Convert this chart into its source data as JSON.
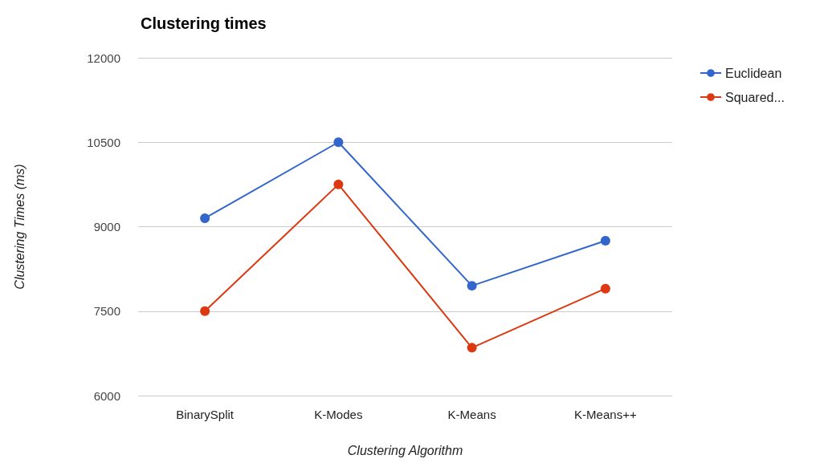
{
  "chart_data": {
    "type": "line",
    "title": "Clustering times",
    "xlabel": "Clustering Algorithm",
    "ylabel": "Clustering Times (ms)",
    "categories": [
      "BinarySplit",
      "K-Modes",
      "K-Means",
      "K-Means++"
    ],
    "series": [
      {
        "name": "Euclidean",
        "color": "#3366cc",
        "values": [
          9150,
          10500,
          7950,
          8750
        ]
      },
      {
        "name": "Squared...",
        "color": "#dc3912",
        "values": [
          7500,
          9750,
          6850,
          7900
        ]
      }
    ],
    "ylim": [
      6000,
      12000
    ],
    "yticks": [
      6000,
      7500,
      9000,
      10500,
      12000
    ],
    "grid": "y",
    "legend": "top right",
    "marker": "circle",
    "line_style": "solid"
  }
}
